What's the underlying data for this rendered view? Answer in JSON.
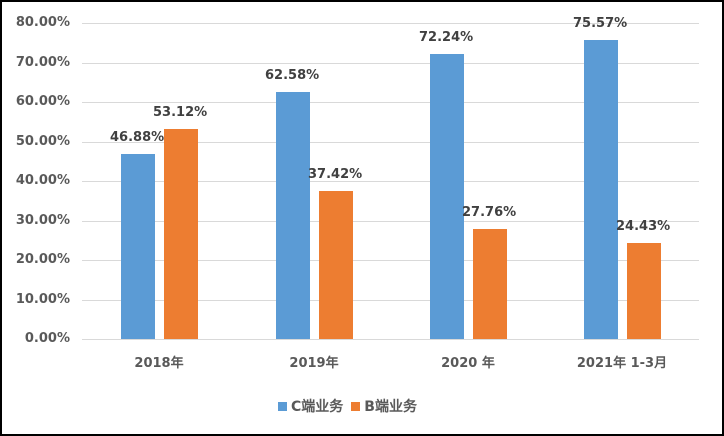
{
  "chart_data": {
    "type": "bar",
    "title": "",
    "xlabel": "",
    "ylabel": "",
    "ylim": [
      0,
      80
    ],
    "yticks": [
      "0.00%",
      "10.00%",
      "20.00%",
      "30.00%",
      "40.00%",
      "50.00%",
      "60.00%",
      "70.00%",
      "80.00%"
    ],
    "categories": [
      "2018年",
      "2019年",
      "2020 年",
      "2021年 1-3月"
    ],
    "series": [
      {
        "name": "C端业务",
        "color": "#5b9bd5",
        "values": [
          46.88,
          62.58,
          72.24,
          75.57
        ],
        "labels": [
          "46.88%",
          "62.58%",
          "72.24%",
          "75.57%"
        ]
      },
      {
        "name": "B端业务",
        "color": "#ed7d31",
        "values": [
          53.12,
          37.42,
          27.76,
          24.43
        ],
        "labels": [
          "53.12%",
          "37.42%",
          "27.76%",
          "24.43%"
        ]
      }
    ],
    "grid": true,
    "legend_position": "bottom"
  }
}
